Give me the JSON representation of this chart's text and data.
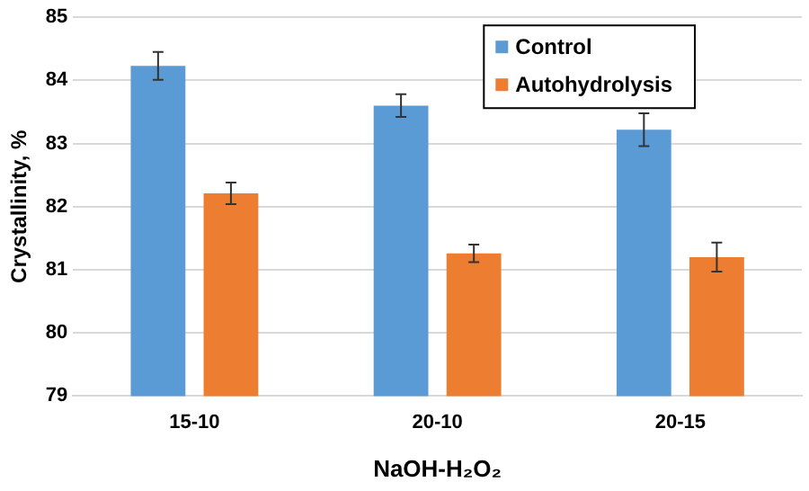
{
  "chart_data": {
    "type": "bar",
    "xlabel": "NaOH-H₂O₂",
    "ylabel": "Crystallinity, %",
    "categories": [
      "15-10",
      "20-10",
      "20-15"
    ],
    "series": [
      {
        "name": "Control",
        "color": "#5b9bd5",
        "values": [
          84.23,
          83.6,
          83.22
        ],
        "errors": [
          0.22,
          0.18,
          0.26
        ]
      },
      {
        "name": "Autohydrolysis",
        "color": "#ed7d31",
        "values": [
          82.21,
          81.26,
          81.2
        ],
        "errors": [
          0.17,
          0.14,
          0.23
        ]
      }
    ],
    "ylim": [
      79,
      85
    ],
    "yticks": [
      79,
      80,
      81,
      82,
      83,
      84,
      85
    ],
    "grid": "y",
    "legend": "top right"
  }
}
